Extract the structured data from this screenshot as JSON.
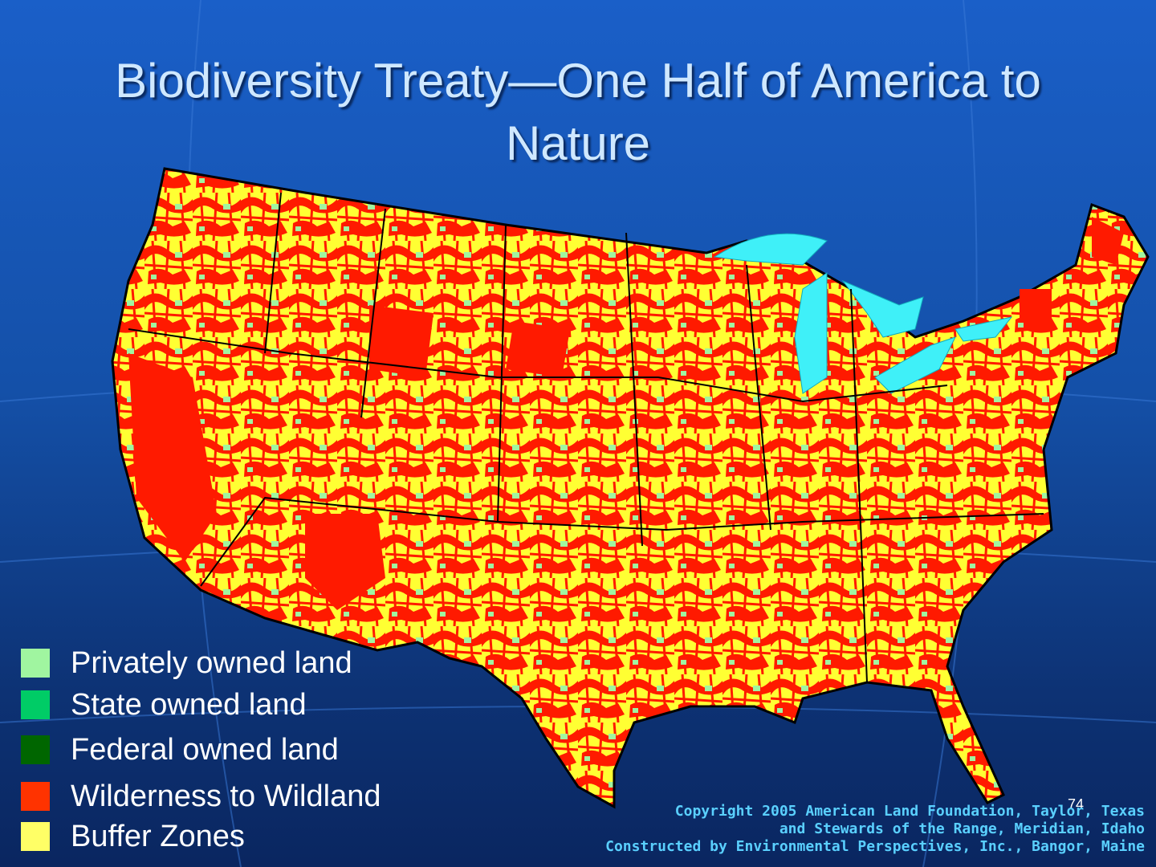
{
  "title": "Biodiversity Treaty—One Half of America to Nature",
  "legend": [
    {
      "label": "Privately owned land",
      "color": "#a0f5a0"
    },
    {
      "label": "State owned land",
      "color": "#00cc66"
    },
    {
      "label": "Federal owned land",
      "color": "#006600"
    },
    {
      "label": "Wilderness to Wildland",
      "color": "#ff3300"
    },
    {
      "label": "Buffer Zones",
      "color": "#ffff66"
    }
  ],
  "slide_number": "74",
  "credits": [
    "Copyright 2005 American Land Foundation, Taylor, Texas",
    "and Stewards of the Range, Meridian, Idaho",
    "Constructed by Environmental Perspectives, Inc., Bangor, Maine"
  ]
}
